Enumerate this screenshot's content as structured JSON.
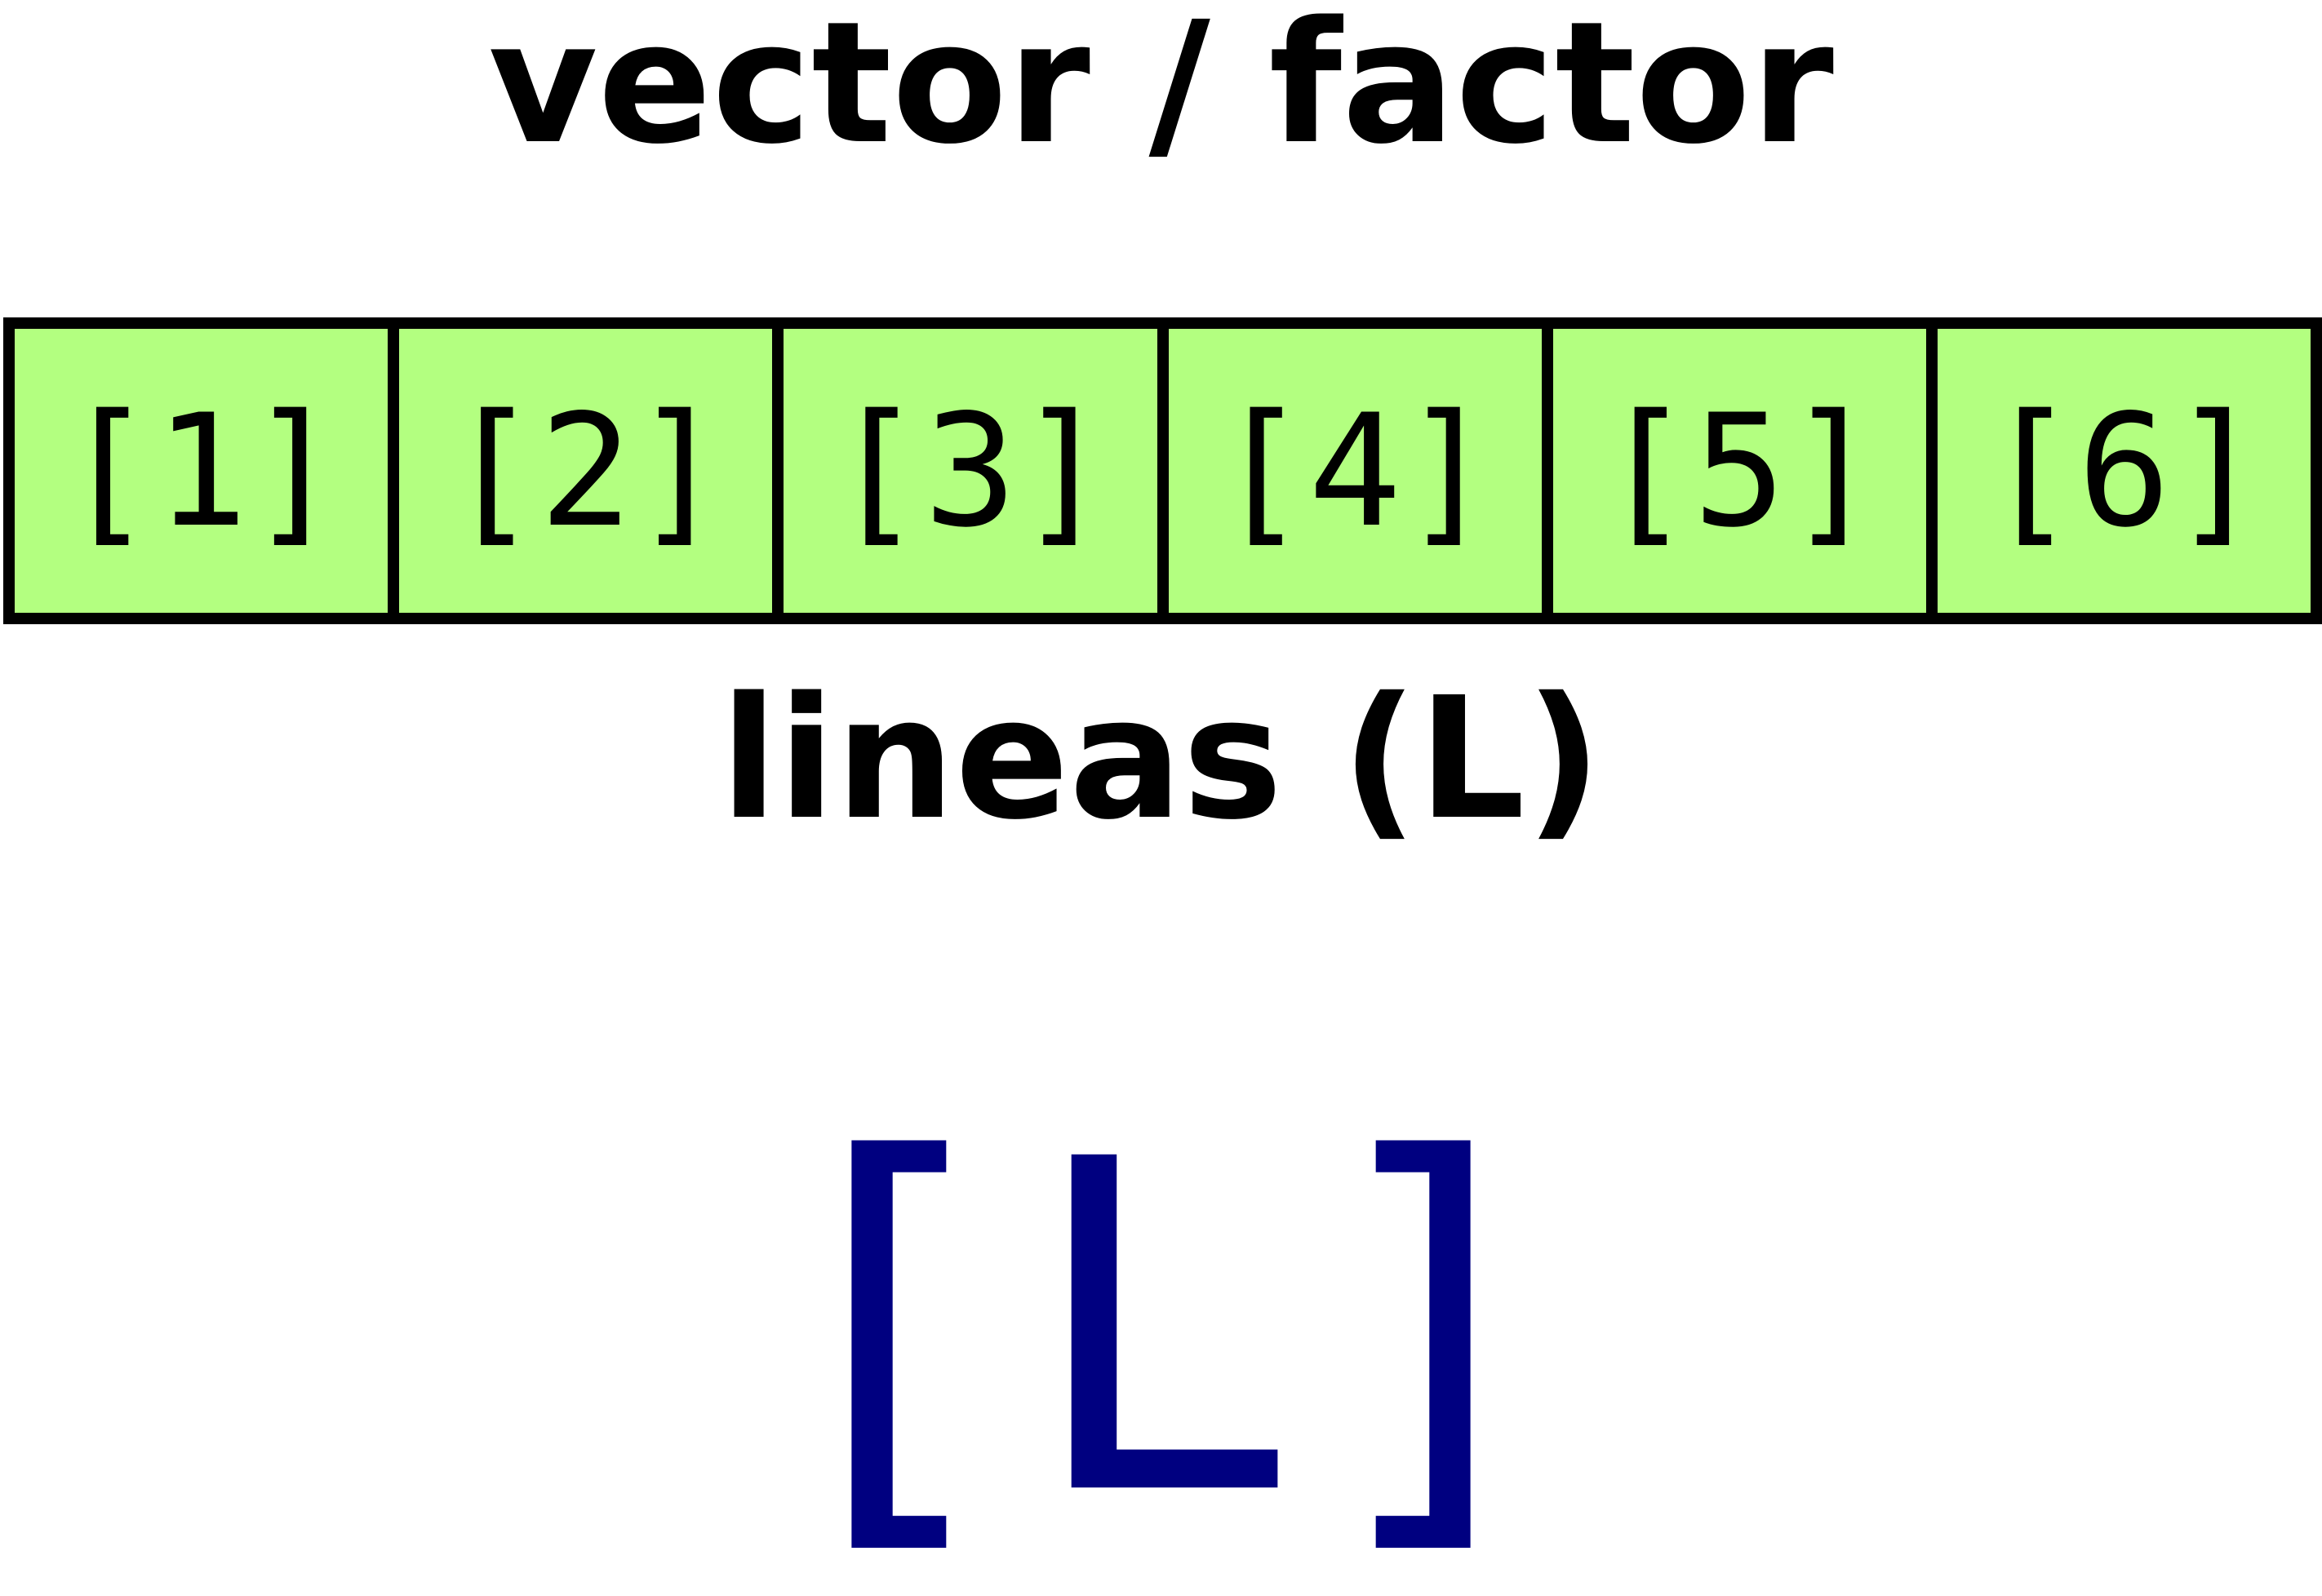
{
  "title": "vector / factor",
  "cells": [
    "[1]",
    "[2]",
    "[3]",
    "[4]",
    "[5]",
    "[6]"
  ],
  "subtitle": "lineas (L)",
  "index_expression": "[L]",
  "colors": {
    "cell_fill": "#b3ff80",
    "border": "#000000",
    "index_text": "#000080"
  }
}
